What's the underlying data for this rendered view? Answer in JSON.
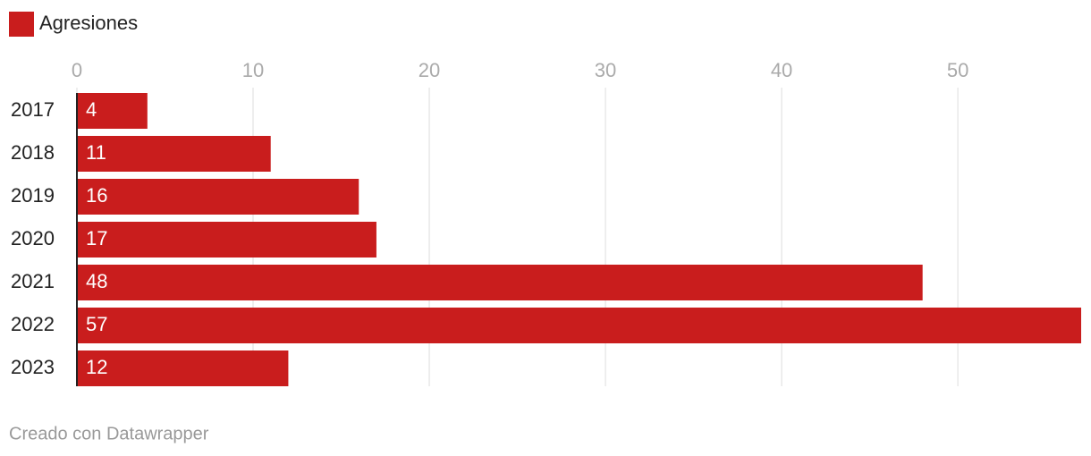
{
  "chart_data": {
    "type": "bar",
    "orientation": "horizontal",
    "categories": [
      "2017",
      "2018",
      "2019",
      "2020",
      "2021",
      "2022",
      "2023"
    ],
    "series": [
      {
        "name": "Agresiones",
        "color": "#c91d1d",
        "values": [
          4,
          11,
          16,
          17,
          48,
          57,
          12
        ]
      }
    ],
    "xlim": [
      0,
      57
    ],
    "xticks": [
      0,
      10,
      20,
      30,
      40,
      50
    ],
    "grid": true,
    "legend": "top-left",
    "credit": "Creado con Datawrapper"
  }
}
